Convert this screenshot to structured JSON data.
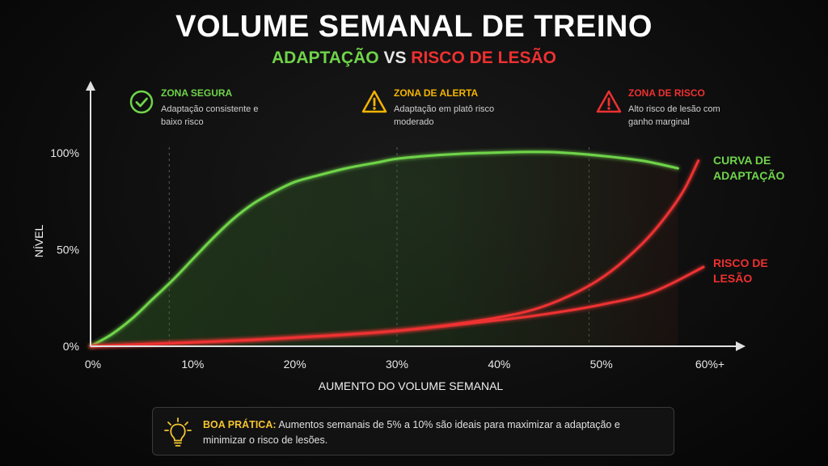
{
  "header": {
    "title": "VOLUME SEMANAL DE TREINO",
    "subtitle_left": "ADAPTAÇÃO",
    "subtitle_mid": "VS",
    "subtitle_right": "RISCO DE LESÃO"
  },
  "zones": [
    {
      "title": "ZONA SEGURA",
      "desc": "Adaptação consistente e baixo risco",
      "icon": "check-circle-icon",
      "color": "#6fd44a"
    },
    {
      "title": "ZONA DE ALERTA",
      "desc": "Adaptação em platô risco moderado",
      "icon": "warning-triangle-icon",
      "color": "#f4b400"
    },
    {
      "title": "ZONA DE RISCO",
      "desc": "Alto risco de lesão com ganho marginal",
      "icon": "warning-triangle-icon",
      "color": "#ee3030"
    }
  ],
  "chart_data": {
    "type": "line",
    "xlabel": "AUMENTO DO VOLUME SEMANAL",
    "ylabel": "NÍVEL",
    "x_ticks": [
      "0%",
      "10%",
      "20%",
      "30%",
      "40%",
      "50%",
      "60%+"
    ],
    "y_ticks": [
      "0%",
      "50%",
      "100%"
    ],
    "xlim": [
      0,
      60
    ],
    "ylim": [
      0,
      100
    ],
    "zone_dividers_x": [
      7.7,
      30,
      48.8
    ],
    "grid": false,
    "series": [
      {
        "name": "CURVA DE ADAPTAÇÃO",
        "color": "#6fd44a",
        "x": [
          0,
          2,
          4,
          6,
          8,
          10,
          12,
          14,
          16,
          18,
          20,
          22,
          25,
          28,
          30,
          33,
          36,
          40,
          43,
          46,
          50,
          54,
          57.5
        ],
        "y": [
          0,
          6,
          14,
          24,
          34,
          45,
          56,
          66,
          74,
          80,
          85,
          88,
          92,
          95,
          97,
          98.5,
          99.5,
          100.2,
          100.5,
          100.2,
          98.5,
          96,
          92
        ]
      },
      {
        "name": "RISCO DE LESÃO",
        "color": "#ee3030",
        "x": [
          0,
          5,
          10,
          15,
          20,
          25,
          30,
          35,
          40,
          44,
          48,
          51,
          54,
          56,
          58,
          59.5
        ],
        "y": [
          0,
          1,
          2,
          3,
          4.5,
          6,
          8,
          11,
          15,
          20,
          29,
          39,
          53,
          65,
          80,
          96
        ]
      },
      {
        "name": "",
        "color": "#ee3030",
        "x": [
          0,
          10,
          20,
          30,
          40,
          45,
          50,
          55,
          60
        ],
        "y": [
          0,
          2,
          4.5,
          8,
          13.5,
          17,
          21.5,
          28,
          41
        ]
      }
    ]
  },
  "tip": {
    "lead": "BOA PRÁTICA:",
    "text": "Aumentos semanais de 5% a 10% são ideais para maximizar a adaptação e minimizar o risco de lesões.",
    "icon": "lightbulb-icon"
  },
  "colors": {
    "green": "#6fd44a",
    "red": "#ee3030",
    "amber": "#f4b400",
    "axis": "#e0e0e0"
  }
}
